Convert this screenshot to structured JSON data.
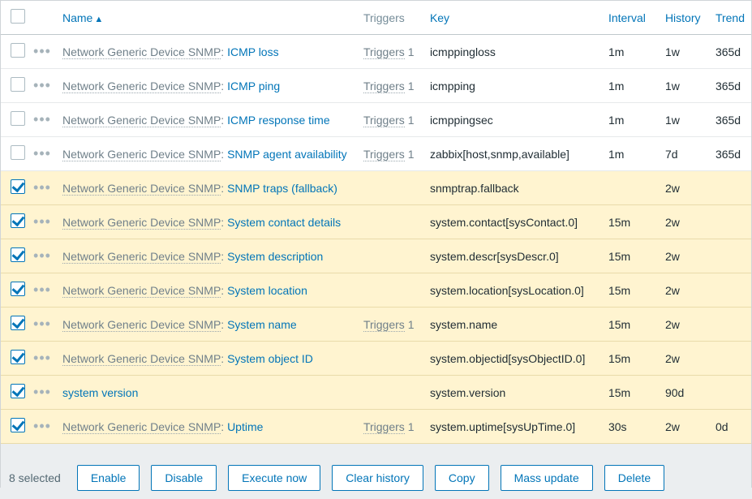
{
  "colors": {
    "link": "#0275b8",
    "muted": "#70808a",
    "border": "#e6e9eb",
    "header_border": "#c0c8cc",
    "selected_bg": "#fff4d0",
    "selected_border": "#e9dbaa",
    "page_bg": "#ebeef0",
    "dots": "#a6b3ba"
  },
  "header": {
    "name": "Name",
    "triggers": "Triggers",
    "key": "Key",
    "interval": "Interval",
    "history": "History",
    "trends": "Trend",
    "sort_column": "name",
    "sort_dir": "asc"
  },
  "rows": [
    {
      "checked": false,
      "template": "Network Generic Device SNMP",
      "item": "ICMP loss",
      "triggers_label": "Triggers",
      "triggers_count": "1",
      "key": "icmppingloss",
      "interval": "1m",
      "history": "1w",
      "trends": "365d"
    },
    {
      "checked": false,
      "template": "Network Generic Device SNMP",
      "item": "ICMP ping",
      "triggers_label": "Triggers",
      "triggers_count": "1",
      "key": "icmpping",
      "interval": "1m",
      "history": "1w",
      "trends": "365d"
    },
    {
      "checked": false,
      "template": "Network Generic Device SNMP",
      "item": "ICMP response time",
      "triggers_label": "Triggers",
      "triggers_count": "1",
      "key": "icmppingsec",
      "interval": "1m",
      "history": "1w",
      "trends": "365d"
    },
    {
      "checked": false,
      "template": "Network Generic Device SNMP",
      "item": "SNMP agent availability",
      "triggers_label": "Triggers",
      "triggers_count": "1",
      "key": "zabbix[host,snmp,available]",
      "interval": "1m",
      "history": "7d",
      "trends": "365d"
    },
    {
      "checked": true,
      "template": "Network Generic Device SNMP",
      "item": "SNMP traps (fallback)",
      "triggers_label": "",
      "triggers_count": "",
      "key": "snmptrap.fallback",
      "interval": "",
      "history": "2w",
      "trends": ""
    },
    {
      "checked": true,
      "template": "Network Generic Device SNMP",
      "item": "System contact details",
      "triggers_label": "",
      "triggers_count": "",
      "key": "system.contact[sysContact.0]",
      "interval": "15m",
      "history": "2w",
      "trends": ""
    },
    {
      "checked": true,
      "template": "Network Generic Device SNMP",
      "item": "System description",
      "triggers_label": "",
      "triggers_count": "",
      "key": "system.descr[sysDescr.0]",
      "interval": "15m",
      "history": "2w",
      "trends": ""
    },
    {
      "checked": true,
      "template": "Network Generic Device SNMP",
      "item": "System location",
      "triggers_label": "",
      "triggers_count": "",
      "key": "system.location[sysLocation.0]",
      "interval": "15m",
      "history": "2w",
      "trends": ""
    },
    {
      "checked": true,
      "template": "Network Generic Device SNMP",
      "item": "System name",
      "triggers_label": "Triggers",
      "triggers_count": "1",
      "key": "system.name",
      "interval": "15m",
      "history": "2w",
      "trends": ""
    },
    {
      "checked": true,
      "template": "Network Generic Device SNMP",
      "item": "System object ID",
      "triggers_label": "",
      "triggers_count": "",
      "key": "system.objectid[sysObjectID.0]",
      "interval": "15m",
      "history": "2w",
      "trends": ""
    },
    {
      "checked": true,
      "template": "",
      "item": "system version",
      "triggers_label": "",
      "triggers_count": "",
      "key": "system.version",
      "interval": "15m",
      "history": "90d",
      "trends": ""
    },
    {
      "checked": true,
      "template": "Network Generic Device SNMP",
      "item": "Uptime",
      "triggers_label": "Triggers",
      "triggers_count": "1",
      "key": "system.uptime[sysUpTime.0]",
      "interval": "30s",
      "history": "2w",
      "trends": "0d"
    }
  ],
  "footer": {
    "selected_text": "8 selected",
    "buttons": {
      "enable": "Enable",
      "disable": "Disable",
      "execute_now": "Execute now",
      "clear_history": "Clear history",
      "copy": "Copy",
      "mass_update": "Mass update",
      "delete": "Delete"
    }
  }
}
